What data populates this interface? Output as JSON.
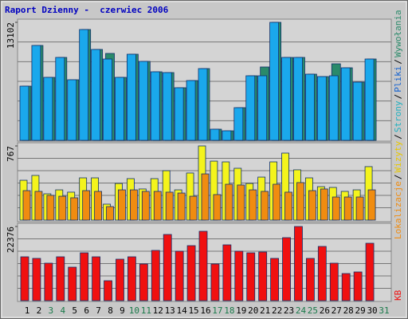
{
  "chart_data": {
    "type": "bar",
    "title": "Raport Dzienny -  czerwiec 2006",
    "categories": [
      "1",
      "2",
      "3",
      "4",
      "5",
      "6",
      "7",
      "8",
      "9",
      "10",
      "11",
      "12",
      "13",
      "14",
      "15",
      "16",
      "17",
      "18",
      "19",
      "20",
      "21",
      "22",
      "23",
      "24",
      "25",
      "26",
      "27",
      "28",
      "29",
      "30",
      "31"
    ],
    "category_colors": [
      "#000",
      "#000",
      "#1a7a4a",
      "#1a7a4a",
      "#000",
      "#000",
      "#000",
      "#000",
      "#000",
      "#1a7a4a",
      "#1a7a4a",
      "#000",
      "#000",
      "#000",
      "#000",
      "#000",
      "#1a7a4a",
      "#1a7a4a",
      "#000",
      "#000",
      "#000",
      "#000",
      "#000",
      "#1a7a4a",
      "#1a7a4a",
      "#000",
      "#000",
      "#000",
      "#000",
      "#000",
      "#1a7a4a"
    ],
    "panels": [
      {
        "ylim": [
          0,
          13102
        ],
        "yticks": [
          13102
        ],
        "series": [
          {
            "color": "#2a8a6a",
            "values": [
              6020,
              10535,
              6994,
              9207,
              6728,
              12305,
              10092,
              9650,
              6994,
              9561,
              8764,
              7613,
              7525,
              5843,
              6640,
              7968,
              1239,
              1062,
              3630,
              7171,
              8145,
              13102,
              9207,
              9207,
              7348,
              7082,
              8499,
              8056,
              6463,
              9030,
              null
            ]
          },
          {
            "color": "#1aa8ec",
            "values": [
              6020,
              10535,
              6994,
              9207,
              6728,
              12305,
              10092,
              9030,
              6994,
              9561,
              8764,
              7613,
              7525,
              5843,
              6640,
              7968,
              1239,
              1062,
              3630,
              7171,
              7171,
              13102,
              9207,
              9207,
              7348,
              7082,
              7171,
              8056,
              6463,
              9030,
              null
            ]
          }
        ]
      },
      {
        "ylim": [
          0,
          767
        ],
        "yticks": [
          767
        ],
        "series": [
          {
            "color": "#f4f41c",
            "values": [
              412,
              462,
              272,
              313,
              289,
              437,
              437,
              165,
              379,
              429,
              322,
              429,
              511,
              313,
              487,
              767,
              610,
              602,
              536,
              379,
              445,
              602,
              693,
              520,
              437,
              346,
              338,
              297,
              313,
              553,
              null
            ]
          },
          {
            "color": "#f08c10",
            "values": [
              305,
              297,
              256,
              247,
              231,
              305,
              297,
              140,
              313,
              313,
              297,
              297,
              289,
              280,
              247,
              478,
              264,
              371,
              363,
              313,
              297,
              371,
              289,
              388,
              305,
              322,
              239,
              239,
              239,
              313,
              null
            ]
          }
        ]
      },
      {
        "ylim": [
          0,
          22376
        ],
        "yticks": [
          22376
        ],
        "series": [
          {
            "color": "#f01010",
            "values": [
              13233,
              12752,
              11308,
              13233,
              10105,
              14436,
              13233,
              6015,
              12511,
              13233,
              11068,
              15158,
              19970,
              14917,
              16601,
              20932,
              11068,
              16842,
              14917,
              14436,
              14677,
              12752,
              19007,
              22376,
              12752,
              16361,
              11308,
              8180,
              8662,
              17323,
              null
            ]
          }
        ]
      }
    ],
    "legend": [
      {
        "name": "Lokalizacje",
        "color": "#f08c10"
      },
      {
        "name": "Wizyty",
        "color": "#e8c800"
      },
      {
        "name": "Strony",
        "color": "#20b0c0"
      },
      {
        "name": "Pliki",
        "color": "#1060d0"
      },
      {
        "name": "Wywołania",
        "color": "#2a8a6a"
      }
    ],
    "legend_separator": "/",
    "bottom_legend": {
      "name": "KB",
      "color": "#f01010"
    }
  }
}
